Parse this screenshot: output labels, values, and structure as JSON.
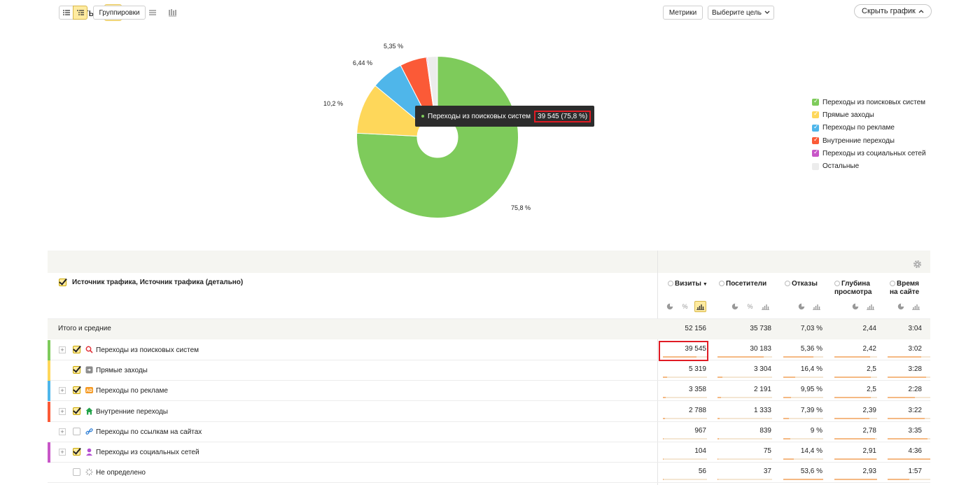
{
  "header": {
    "title": "Визиты",
    "hide_chart_label": "Скрыть график"
  },
  "pie": {
    "labels": [
      "75,8 %",
      "10,2 %",
      "6,44 %",
      "5,35 %"
    ],
    "tooltip": {
      "name": "Переходы из поисковых систем",
      "value": "39 545 (75,8 %)"
    }
  },
  "chart_data": {
    "type": "pie",
    "categories": [
      "Переходы из поисковых систем",
      "Прямые заходы",
      "Переходы по рекламе",
      "Внутренние переходы",
      "Переходы из социальных сетей",
      "Остальные"
    ],
    "values": [
      75.8,
      10.2,
      6.44,
      5.35,
      0.2,
      2.01
    ],
    "colors": [
      "#7ecb5b",
      "#fed75a",
      "#4fb6ea",
      "#fb5a37",
      "#c856c8",
      "#ececec"
    ],
    "legend_position": "right"
  },
  "legend": [
    {
      "label": "Переходы из поисковых систем",
      "color": "#7ecb5b"
    },
    {
      "label": "Прямые заходы",
      "color": "#fed75a"
    },
    {
      "label": "Переходы по рекламе",
      "color": "#4fb6ea"
    },
    {
      "label": "Внутренние переходы",
      "color": "#fb5a37"
    },
    {
      "label": "Переходы из социальных сетей",
      "color": "#c856c8"
    },
    {
      "label": "Остальные",
      "color": "#ececec"
    }
  ],
  "toolbar": {
    "groupings_label": "Группировки",
    "metrics_label": "Метрики",
    "goal_label": "Выберите цель"
  },
  "table": {
    "dimension_header": "Источник трафика, Источник трафика (детально)",
    "columns": [
      {
        "line1": "Визиты",
        "line2": ""
      },
      {
        "line1": "Посетители",
        "line2": ""
      },
      {
        "line1": "Отказы",
        "line2": ""
      },
      {
        "line1": "Глубина",
        "line2": "просмотра"
      },
      {
        "line1": "Время",
        "line2": "на сайте"
      }
    ],
    "totals_label": "Итого и средние",
    "totals": [
      "52 156",
      "35 738",
      "7,03 %",
      "2,44",
      "3:04"
    ],
    "rows": [
      {
        "name": "Переходы из поисковых систем",
        "values": [
          "39 545",
          "30 183",
          "5,36 %",
          "2,42",
          "3:02"
        ],
        "stripe": "#7ecb5b",
        "icon": "magnifier-icon",
        "checked": true,
        "expandable": true,
        "bars": [
          0.76,
          0.84,
          0.76,
          0.83,
          0.79
        ]
      },
      {
        "name": "Прямые заходы",
        "values": [
          "5 319",
          "3 304",
          "16,4 %",
          "2,5",
          "3:28"
        ],
        "stripe": "#fed75a",
        "icon": "enter-icon",
        "checked": true,
        "expandable": false,
        "bars": [
          0.1,
          0.09,
          0.3,
          0.86,
          0.9
        ]
      },
      {
        "name": "Переходы по рекламе",
        "values": [
          "3 358",
          "2 191",
          "9,95 %",
          "2,5",
          "2:28"
        ],
        "stripe": "#4fb6ea",
        "icon": "ad-icon",
        "checked": true,
        "expandable": true,
        "bars": [
          0.06,
          0.06,
          0.19,
          0.86,
          0.64
        ]
      },
      {
        "name": "Внутренние переходы",
        "values": [
          "2 788",
          "1 333",
          "7,39 %",
          "2,39",
          "3:22"
        ],
        "stripe": "#fb5a37",
        "icon": "home-icon",
        "checked": true,
        "expandable": true,
        "bars": [
          0.05,
          0.04,
          0.14,
          0.82,
          0.87
        ]
      },
      {
        "name": "Переходы по ссылкам на сайтах",
        "values": [
          "967",
          "839",
          "9 %",
          "2,78",
          "3:35"
        ],
        "stripe": "",
        "icon": "link-icon",
        "checked": false,
        "expandable": true,
        "bars": [
          0.02,
          0.02,
          0.17,
          0.95,
          0.93
        ]
      },
      {
        "name": "Переходы из социальных сетей",
        "values": [
          "104",
          "75",
          "14,4 %",
          "2,91",
          "4:36"
        ],
        "stripe": "#c856c8",
        "icon": "person-icon",
        "checked": true,
        "expandable": true,
        "bars": [
          0.004,
          0.003,
          0.27,
          0.99,
          1.0
        ]
      },
      {
        "name": "Не определено",
        "values": [
          "56",
          "37",
          "53,6 %",
          "2,93",
          "1:57"
        ],
        "stripe": "",
        "icon": "undefined-icon",
        "checked": false,
        "expandable": false,
        "bars": [
          0.002,
          0.001,
          1.0,
          1.0,
          0.51
        ]
      }
    ]
  }
}
